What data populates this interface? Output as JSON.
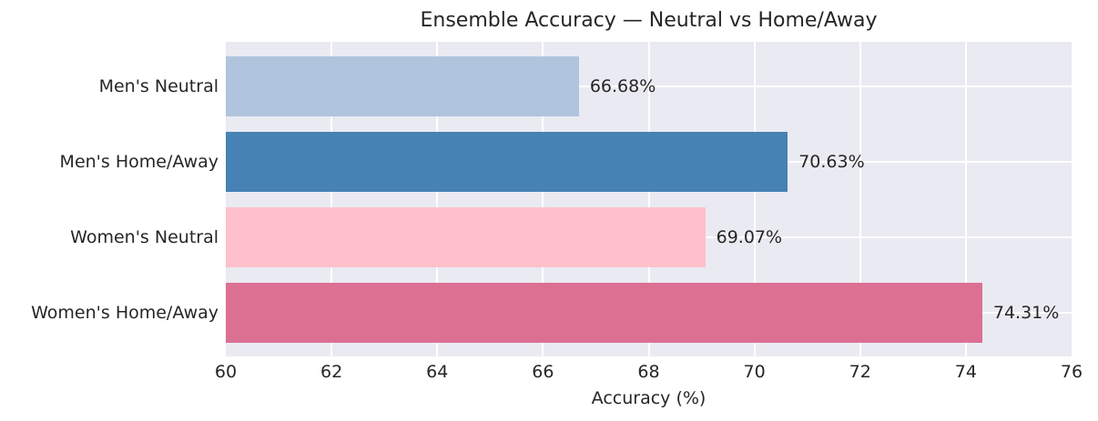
{
  "chart_data": {
    "type": "bar",
    "orientation": "horizontal",
    "title": "Ensemble Accuracy — Neutral vs Home/Away",
    "xlabel": "Accuracy (%)",
    "ylabel": "",
    "xlim": [
      60,
      76
    ],
    "xticks": [
      "60",
      "62",
      "64",
      "66",
      "68",
      "70",
      "72",
      "74",
      "76"
    ],
    "grid": true,
    "categories": [
      "Men's Neutral",
      "Men's Home/Away",
      "Women's Neutral",
      "Women's Home/Away"
    ],
    "values": [
      66.68,
      70.63,
      69.07,
      74.31
    ],
    "value_labels": [
      "66.68%",
      "70.63%",
      "69.07%",
      "74.31%"
    ],
    "colors": [
      "#b0c4de",
      "#4682b4",
      "#ffc0cb",
      "#db7093"
    ]
  }
}
